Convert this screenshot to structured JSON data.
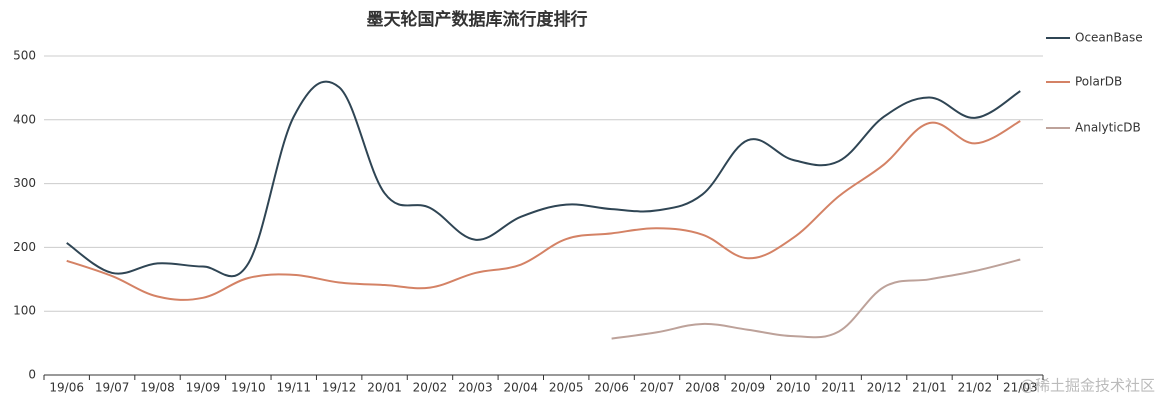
{
  "chart_data": {
    "type": "line",
    "title": "墨天轮国产数据库流行度排行",
    "categories": [
      "19/06",
      "19/07",
      "19/08",
      "19/09",
      "19/10",
      "19/11",
      "19/12",
      "20/01",
      "20/02",
      "20/03",
      "20/04",
      "20/05",
      "20/06",
      "20/07",
      "20/08",
      "20/09",
      "20/10",
      "20/11",
      "20/12",
      "21/01",
      "21/02",
      "21/03"
    ],
    "series": [
      {
        "name": "OceanBase",
        "color": "#2f4554",
        "values": [
          207,
          160,
          175,
          170,
          175,
          405,
          451,
          285,
          262,
          212,
          248,
          267,
          260,
          258,
          283,
          368,
          337,
          335,
          405,
          435,
          403,
          445
        ]
      },
      {
        "name": "PolarDB",
        "color": "#d48265",
        "values": [
          179,
          155,
          123,
          121,
          152,
          157,
          145,
          141,
          137,
          160,
          173,
          213,
          222,
          230,
          220,
          183,
          215,
          280,
          330,
          395,
          363,
          398
        ]
      },
      {
        "name": "AnalyticDB",
        "color": "#bda29a",
        "values": [
          null,
          null,
          null,
          null,
          null,
          null,
          null,
          null,
          null,
          null,
          null,
          null,
          57,
          67,
          80,
          71,
          61,
          68,
          138,
          150,
          163,
          181
        ]
      }
    ],
    "ylim": [
      0,
      500
    ],
    "yticks": [
      0,
      100,
      200,
      300,
      400,
      500
    ],
    "grid": true,
    "legend": "right",
    "watermark": "@稀土掘金技术社区"
  }
}
